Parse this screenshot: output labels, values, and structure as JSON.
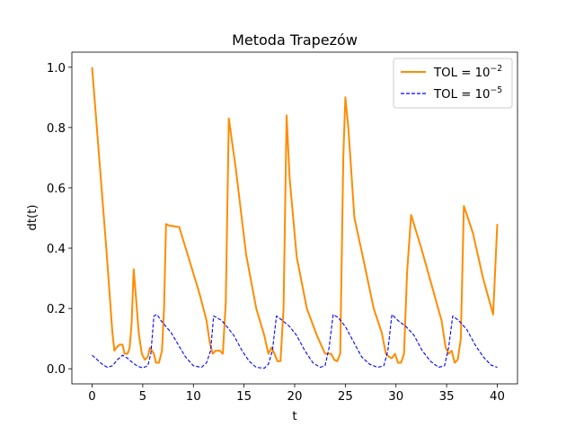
{
  "chart_data": {
    "type": "line",
    "title": "Metoda Trapezów",
    "xlabel": "t",
    "ylabel": "dt(t)",
    "xlim": [
      -2.0,
      42.0
    ],
    "ylim": [
      -0.05,
      1.05
    ],
    "xticks": [
      0,
      5,
      10,
      15,
      20,
      25,
      30,
      35,
      40
    ],
    "xtick_labels": [
      "0",
      "5",
      "10",
      "15",
      "20",
      "25",
      "30",
      "35",
      "40"
    ],
    "yticks": [
      0.0,
      0.2,
      0.4,
      0.6,
      0.8,
      1.0
    ],
    "ytick_labels": [
      "0.0",
      "0.2",
      "0.4",
      "0.6",
      "0.8",
      "1.0"
    ],
    "grid": false,
    "legend_position": "top-right",
    "series": [
      {
        "name_base": "TOL = 10",
        "name_exp": "−2",
        "color": "#ff8c00",
        "style": "solid",
        "x": [
          0.0,
          0.7,
          1.4,
          2.0,
          2.2,
          2.4,
          2.7,
          3.0,
          3.2,
          3.5,
          3.7,
          3.9,
          4.1,
          4.3,
          4.6,
          4.9,
          5.2,
          5.5,
          5.7,
          5.9,
          6.1,
          6.3,
          6.6,
          6.9,
          7.1,
          7.3,
          7.6,
          8.6,
          9.6,
          10.6,
          11.3,
          11.6,
          11.9,
          12.2,
          12.6,
          12.9,
          13.2,
          13.5,
          14.2,
          15.2,
          16.2,
          17.0,
          17.4,
          17.7,
          18.0,
          18.3,
          18.6,
          18.9,
          19.2,
          19.5,
          20.2,
          21.2,
          22.2,
          23.0,
          23.3,
          23.6,
          23.9,
          24.2,
          24.5,
          24.8,
          25.0,
          25.3,
          25.9,
          26.8,
          27.8,
          28.6,
          29.0,
          29.3,
          29.6,
          29.9,
          30.2,
          30.5,
          30.8,
          31.1,
          31.5,
          32.5,
          33.5,
          34.5,
          34.9,
          35.2,
          35.5,
          35.8,
          36.1,
          36.4,
          36.7,
          37.6,
          38.6,
          39.6,
          40.0
        ],
        "y": [
          1.0,
          0.7,
          0.4,
          0.12,
          0.06,
          0.07,
          0.08,
          0.08,
          0.05,
          0.05,
          0.07,
          0.15,
          0.33,
          0.25,
          0.12,
          0.05,
          0.03,
          0.04,
          0.07,
          0.06,
          0.05,
          0.02,
          0.02,
          0.06,
          0.2,
          0.48,
          0.475,
          0.47,
          0.36,
          0.25,
          0.16,
          0.09,
          0.05,
          0.06,
          0.06,
          0.05,
          0.22,
          0.83,
          0.66,
          0.38,
          0.2,
          0.11,
          0.05,
          0.07,
          0.05,
          0.025,
          0.025,
          0.2,
          0.84,
          0.63,
          0.37,
          0.2,
          0.11,
          0.05,
          0.05,
          0.05,
          0.03,
          0.025,
          0.05,
          0.7,
          0.9,
          0.8,
          0.5,
          0.36,
          0.2,
          0.12,
          0.05,
          0.04,
          0.035,
          0.05,
          0.02,
          0.02,
          0.05,
          0.32,
          0.51,
          0.4,
          0.28,
          0.16,
          0.07,
          0.05,
          0.06,
          0.02,
          0.03,
          0.1,
          0.54,
          0.45,
          0.3,
          0.18,
          0.48
        ]
      },
      {
        "name_base": "TOL = 10",
        "name_exp": "−5",
        "color": "#0000ff",
        "style": "dashed",
        "x": [
          0.0,
          0.5,
          1.0,
          1.5,
          2.0,
          2.5,
          3.0,
          3.5,
          4.0,
          4.5,
          5.0,
          5.5,
          5.8,
          6.1,
          6.4,
          6.8,
          7.3,
          7.8,
          8.5,
          9.2,
          10.0,
          10.8,
          11.3,
          11.7,
          12.0,
          12.3,
          12.8,
          13.3,
          14.0,
          14.8,
          15.5,
          16.2,
          17.0,
          17.4,
          17.8,
          18.2,
          18.8,
          19.5,
          20.2,
          21.0,
          21.8,
          22.5,
          23.0,
          23.4,
          23.8,
          24.3,
          25.0,
          25.8,
          26.6,
          27.4,
          28.2,
          28.8,
          29.2,
          29.6,
          30.2,
          31.0,
          31.8,
          32.6,
          33.4,
          34.2,
          34.8,
          35.2,
          35.6,
          36.2,
          37.0,
          37.8,
          38.6,
          39.4,
          40.0
        ],
        "y": [
          0.045,
          0.03,
          0.015,
          0.005,
          0.01,
          0.03,
          0.045,
          0.035,
          0.02,
          0.008,
          0.003,
          0.01,
          0.05,
          0.175,
          0.18,
          0.16,
          0.14,
          0.12,
          0.08,
          0.04,
          0.01,
          0.005,
          0.02,
          0.06,
          0.175,
          0.17,
          0.16,
          0.14,
          0.11,
          0.06,
          0.025,
          0.005,
          0.002,
          0.015,
          0.06,
          0.175,
          0.16,
          0.14,
          0.11,
          0.06,
          0.02,
          0.005,
          0.01,
          0.07,
          0.18,
          0.17,
          0.14,
          0.09,
          0.04,
          0.015,
          0.005,
          0.01,
          0.06,
          0.18,
          0.16,
          0.14,
          0.11,
          0.06,
          0.025,
          0.005,
          0.01,
          0.07,
          0.175,
          0.16,
          0.13,
          0.08,
          0.04,
          0.012,
          0.005
        ]
      }
    ]
  }
}
